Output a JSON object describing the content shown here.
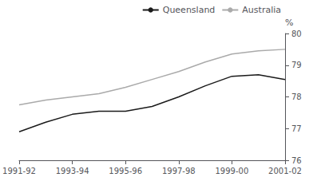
{
  "chart_data": {
    "type": "line",
    "categories": [
      "1991-92",
      null,
      "1993-94",
      null,
      "1995-96",
      null,
      "1997-98",
      null,
      "1999-00",
      null,
      "2001-02"
    ],
    "series": [
      {
        "name": "Australia",
        "color": "#aaaaaa",
        "values": [
          77.75,
          77.9,
          78.0,
          78.1,
          78.3,
          78.55,
          78.8,
          79.1,
          79.35,
          79.45,
          79.5
        ]
      },
      {
        "name": "Queensland",
        "color": "#1a1a1a",
        "values": [
          76.9,
          77.2,
          77.45,
          77.55,
          77.55,
          77.7,
          78.0,
          78.35,
          78.65,
          78.7,
          78.55
        ]
      }
    ],
    "y_label": "%",
    "ylim": [
      76,
      80
    ],
    "yticks": [
      76,
      77,
      78,
      79,
      80
    ],
    "grid": false,
    "legend": "upper right"
  }
}
